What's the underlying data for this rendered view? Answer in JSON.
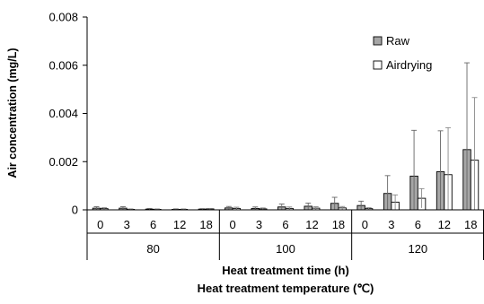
{
  "chart_data": {
    "type": "bar",
    "ylabel": "Air concentration (mg/L)",
    "xlabel": "Heat treatment time (h)",
    "xlabel2": "Heat treatment temperature (℃)",
    "ylim": [
      0,
      0.008
    ],
    "yticks": [
      "0",
      "0.002",
      "0.004",
      "0.006",
      "0.008"
    ],
    "yticks_values": [
      0,
      0.002,
      0.004,
      0.006,
      0.008
    ],
    "grid": false,
    "legend_position": "top-right",
    "groups": [
      {
        "label": "80",
        "times": [
          "0",
          "3",
          "6",
          "12",
          "18"
        ]
      },
      {
        "label": "100",
        "times": [
          "0",
          "3",
          "6",
          "12",
          "18"
        ]
      },
      {
        "label": "120",
        "times": [
          "0",
          "3",
          "6",
          "12",
          "18"
        ]
      }
    ],
    "series": [
      {
        "name": "Raw",
        "color": "#a6a6a6",
        "values": [
          7e-05,
          7e-05,
          3e-05,
          2e-05,
          3e-05,
          8e-05,
          6e-05,
          0.00012,
          0.00015,
          0.00027,
          0.00018,
          0.00068,
          0.0014,
          0.00158,
          0.0025
        ],
        "errors": [
          6e-05,
          6e-05,
          3e-05,
          2e-05,
          2e-05,
          6e-05,
          6e-05,
          0.00012,
          0.00013,
          0.00025,
          0.00018,
          0.00074,
          0.0019,
          0.0017,
          0.0036
        ]
      },
      {
        "name": "Airdrying",
        "color": "#ffffff",
        "values": [
          5e-05,
          2e-05,
          2e-05,
          2e-05,
          4e-05,
          6e-05,
          4e-05,
          6e-05,
          7e-05,
          8e-05,
          5e-05,
          0.00032,
          0.00048,
          0.00146,
          0.00206
        ],
        "errors": [
          4e-05,
          2e-05,
          2e-05,
          2e-05,
          2e-05,
          5e-05,
          4e-05,
          6e-05,
          6e-05,
          6e-05,
          4e-05,
          0.0003,
          0.0004,
          0.00195,
          0.0026
        ]
      }
    ]
  }
}
